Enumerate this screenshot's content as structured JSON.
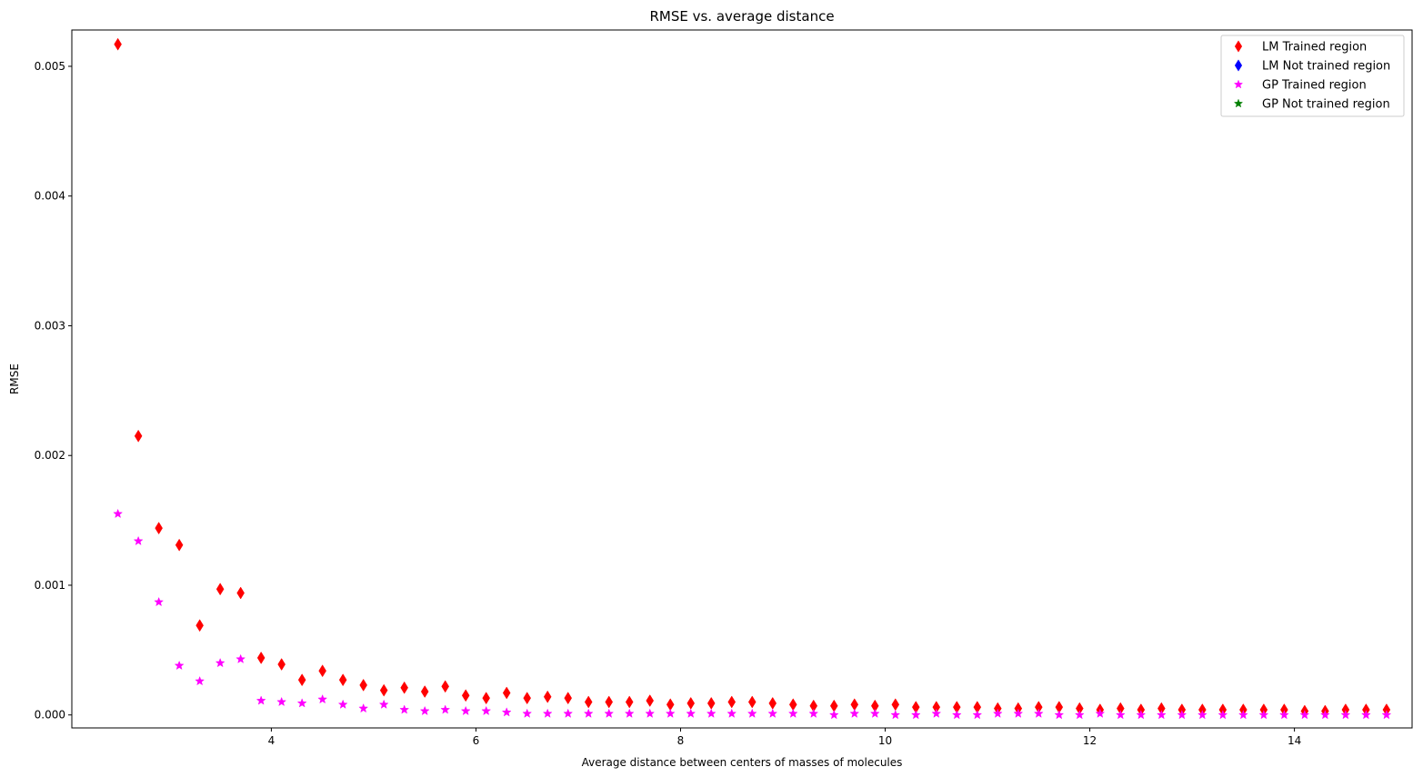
{
  "chart_data": {
    "type": "scatter",
    "title": "RMSE vs. average distance",
    "xlabel": "Average distance between centers of masses of molecules",
    "ylabel": "RMSE",
    "xlim": [
      2.05,
      15.15
    ],
    "ylim": [
      -0.0001,
      0.00528
    ],
    "xticks": [
      4,
      6,
      8,
      10,
      12,
      14
    ],
    "xtick_labels": [
      "4",
      "6",
      "8",
      "10",
      "12",
      "14"
    ],
    "yticks": [
      0.0,
      0.001,
      0.002,
      0.003,
      0.004,
      0.005
    ],
    "ytick_labels": [
      "0.000",
      "0.001",
      "0.002",
      "0.003",
      "0.004",
      "0.005"
    ],
    "grid": false,
    "legend_position": "top-right",
    "legend": [
      {
        "label": "LM Trained region",
        "marker": "diamond",
        "color": "#ff0000"
      },
      {
        "label": "LM Not trained region",
        "marker": "diamond",
        "color": "#0000ff"
      },
      {
        "label": "GP Trained region",
        "marker": "star",
        "color": "#ff00ff"
      },
      {
        "label": "GP Not trained region",
        "marker": "star",
        "color": "#008000"
      }
    ],
    "x": [
      2.5,
      2.7,
      2.9,
      3.1,
      3.3,
      3.5,
      3.7,
      3.9,
      4.1,
      4.3,
      4.5,
      4.7,
      4.9,
      5.1,
      5.3,
      5.5,
      5.7,
      5.9,
      6.1,
      6.3,
      6.5,
      6.7,
      6.9,
      7.1,
      7.3,
      7.5,
      7.7,
      7.9,
      8.1,
      8.3,
      8.5,
      8.7,
      8.9,
      9.1,
      9.3,
      9.5,
      9.7,
      9.9,
      10.1,
      10.3,
      10.5,
      10.7,
      10.9,
      11.1,
      11.3,
      11.5,
      11.7,
      11.9,
      12.1,
      12.3,
      12.5,
      12.7,
      12.9,
      13.1,
      13.3,
      13.5,
      13.7,
      13.9,
      14.1,
      14.3,
      14.5,
      14.7,
      14.9
    ],
    "series": [
      {
        "name": "LM Trained region",
        "marker": "diamond",
        "color": "#ff0000",
        "values": [
          0.00517,
          0.00215,
          0.00144,
          0.00131,
          0.00069,
          0.00097,
          0.00094,
          0.00044,
          0.00039,
          0.00027,
          0.00034,
          0.00027,
          0.00023,
          0.00019,
          0.00021,
          0.00018,
          0.00022,
          0.00015,
          0.00013,
          0.00017,
          0.00013,
          0.00014,
          0.00013,
          0.0001,
          0.0001,
          0.0001,
          0.00011,
          8e-05,
          9e-05,
          9e-05,
          0.0001,
          0.0001,
          9e-05,
          8e-05,
          7e-05,
          7e-05,
          8e-05,
          7e-05,
          8e-05,
          6e-05,
          6e-05,
          6e-05,
          6e-05,
          5e-05,
          5e-05,
          6e-05,
          6e-05,
          5e-05,
          4e-05,
          5e-05,
          4e-05,
          5e-05,
          4e-05,
          4e-05,
          4e-05,
          4e-05,
          4e-05,
          4e-05,
          3e-05,
          3e-05,
          4e-05,
          4e-05,
          4e-05
        ]
      },
      {
        "name": "GP Trained region",
        "marker": "star",
        "color": "#ff00ff",
        "values": [
          0.00155,
          0.00134,
          0.00087,
          0.00038,
          0.00026,
          0.0004,
          0.00043,
          0.00011,
          0.0001,
          9e-05,
          0.00012,
          8e-05,
          5e-05,
          8e-05,
          4e-05,
          3e-05,
          4e-05,
          3e-05,
          3e-05,
          2e-05,
          1e-05,
          1e-05,
          1e-05,
          1e-05,
          1e-05,
          1e-05,
          1e-05,
          1e-05,
          1e-05,
          1e-05,
          1e-05,
          1e-05,
          1e-05,
          1e-05,
          1e-05,
          0.0,
          1e-05,
          1e-05,
          0.0,
          0.0,
          1e-05,
          0.0,
          0.0,
          1e-05,
          1e-05,
          1e-05,
          0.0,
          0.0,
          1e-05,
          0.0,
          0.0,
          0.0,
          0.0,
          0.0,
          0.0,
          0.0,
          0.0,
          0.0,
          0.0,
          0.0,
          0.0,
          0.0,
          0.0
        ]
      }
    ]
  }
}
